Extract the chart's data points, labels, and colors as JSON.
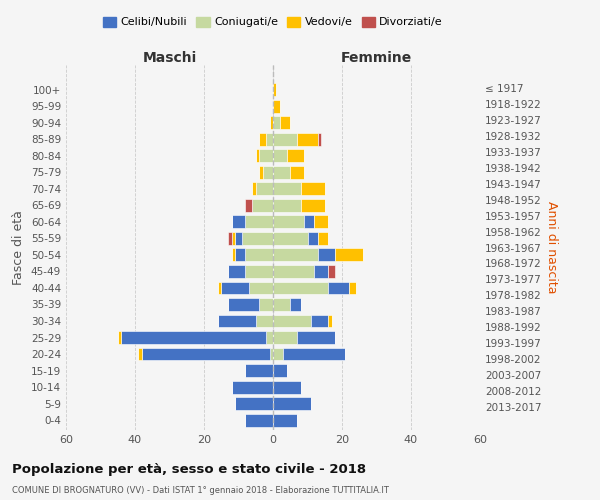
{
  "age_groups": [
    "0-4",
    "5-9",
    "10-14",
    "15-19",
    "20-24",
    "25-29",
    "30-34",
    "35-39",
    "40-44",
    "45-49",
    "50-54",
    "55-59",
    "60-64",
    "65-69",
    "70-74",
    "75-79",
    "80-84",
    "85-89",
    "90-94",
    "95-99",
    "100+"
  ],
  "birth_years": [
    "2013-2017",
    "2008-2012",
    "2003-2007",
    "1998-2002",
    "1993-1997",
    "1988-1992",
    "1983-1987",
    "1978-1982",
    "1973-1977",
    "1968-1972",
    "1963-1967",
    "1958-1962",
    "1953-1957",
    "1948-1952",
    "1943-1947",
    "1938-1942",
    "1933-1937",
    "1928-1932",
    "1923-1927",
    "1918-1922",
    "≤ 1917"
  ],
  "male_celibi": [
    8,
    11,
    12,
    8,
    37,
    42,
    11,
    9,
    8,
    5,
    3,
    2,
    4,
    0,
    0,
    0,
    0,
    0,
    0,
    0,
    0
  ],
  "male_coniugati": [
    0,
    0,
    0,
    0,
    1,
    2,
    5,
    4,
    7,
    8,
    8,
    9,
    8,
    6,
    5,
    3,
    4,
    2,
    0,
    0,
    0
  ],
  "male_vedovi": [
    0,
    0,
    0,
    0,
    1,
    1,
    0,
    0,
    1,
    0,
    1,
    1,
    0,
    0,
    1,
    1,
    1,
    2,
    1,
    0,
    0
  ],
  "male_divorziati": [
    0,
    0,
    0,
    0,
    0,
    0,
    0,
    0,
    0,
    0,
    0,
    1,
    0,
    2,
    0,
    0,
    0,
    0,
    0,
    0,
    0
  ],
  "female_celibi": [
    7,
    11,
    8,
    4,
    18,
    11,
    5,
    3,
    6,
    4,
    5,
    3,
    3,
    0,
    0,
    0,
    0,
    0,
    0,
    0,
    0
  ],
  "female_coniugati": [
    0,
    0,
    0,
    0,
    3,
    7,
    11,
    5,
    16,
    12,
    13,
    10,
    9,
    8,
    8,
    5,
    4,
    7,
    2,
    0,
    0
  ],
  "female_vedovi": [
    0,
    0,
    0,
    0,
    0,
    0,
    1,
    0,
    2,
    0,
    8,
    3,
    4,
    7,
    7,
    4,
    5,
    6,
    3,
    2,
    1
  ],
  "female_divorziati": [
    0,
    0,
    0,
    0,
    0,
    0,
    0,
    0,
    0,
    2,
    0,
    0,
    0,
    0,
    0,
    0,
    0,
    1,
    0,
    0,
    0
  ],
  "colors": {
    "celibi": "#4472c4",
    "coniugati": "#c6d9a0",
    "vedovi": "#ffc000",
    "divorziati": "#c0504d"
  },
  "title": "Popolazione per età, sesso e stato civile - 2018",
  "subtitle": "COMUNE DI BROGNATURO (VV) - Dati ISTAT 1° gennaio 2018 - Elaborazione TUTTITALIA.IT",
  "xlabel_left": "Maschi",
  "xlabel_right": "Femmine",
  "ylabel_left": "Fasce di età",
  "ylabel_right": "Anni di nascita",
  "xlim": 60,
  "legend_labels": [
    "Celibi/Nubili",
    "Coniugati/e",
    "Vedovi/e",
    "Divorziati/e"
  ],
  "bg_color": "#f5f5f5",
  "grid_color": "#cccccc"
}
